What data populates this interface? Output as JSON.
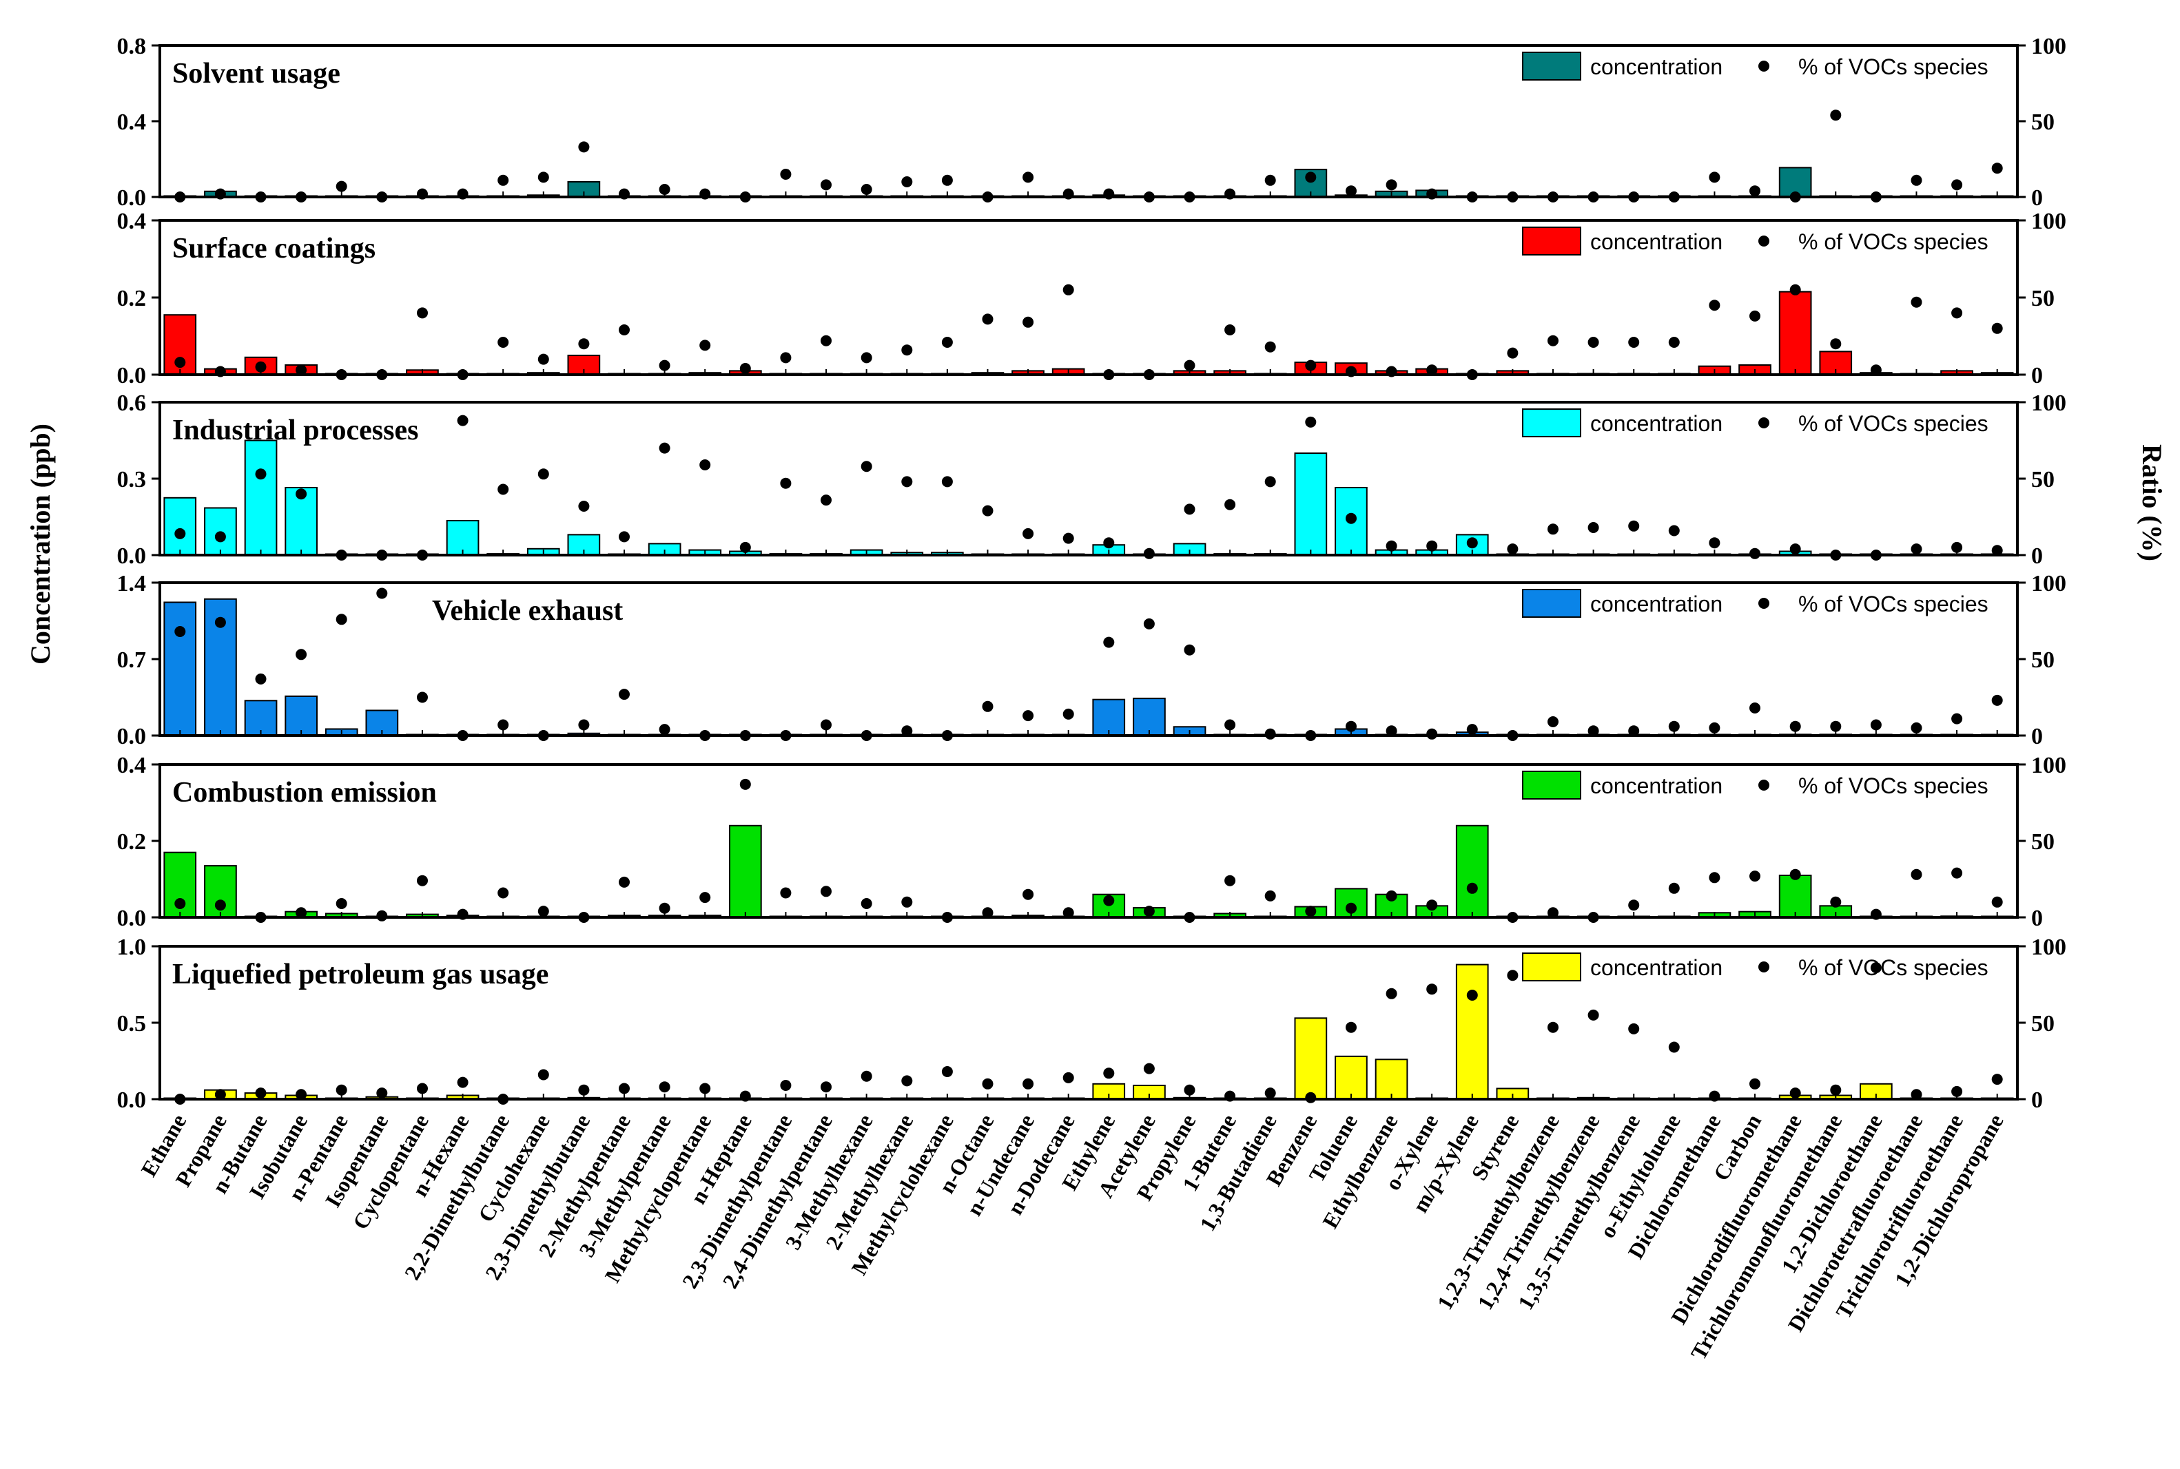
{
  "y_axis_title": "Concentration (ppb)",
  "y2_axis_title": "Ratio (%)",
  "legend": {
    "bar_label": "concentration",
    "dot_label": "% of VOCs species"
  },
  "categories": [
    "Ethane",
    "Propane",
    "n-Butane",
    "Isobutane",
    "n-Pentane",
    "Isopentane",
    "Cyclopentane",
    "n-Hexane",
    "2,2-Dimethylbutane",
    "Cyclohexane",
    "2,3-Dimethylbutane",
    "2-Methylpentane",
    "3-Methylpentane",
    "Methylcyclopentane",
    "n-Heptane",
    "2,3-Dimethylpentane",
    "2,4-Dimethylpentane",
    "3-Methylhexane",
    "2-Methylhexane",
    "Methylcyclohexane",
    "n-Octane",
    "n-Undecane",
    "n-Dodecane",
    "Ethylene",
    "Acetylene",
    "Propylene",
    "1-Butene",
    "1,3-Butadiene",
    "Benzene",
    "Toluene",
    "Ethylbenzene",
    "o-Xylene",
    "m/p-Xylene",
    "Styrene",
    "1,2,3-Trimethylbenzene",
    "1,2,4-Trimethylbenzene",
    "1,3,5-Trimethylbenzene",
    "o-Ethyltoluene",
    "Dichloromethane",
    "Carbon",
    "Dichlorodifluoromethane",
    "Trichloromonofluoromethane",
    "1,2-Dichloroethane",
    "Dichlorotetrafluoroethane",
    "Trichlorotrifluoroethane",
    "1,2-Dichloropropane"
  ],
  "chart_data": [
    {
      "type": "bar",
      "title": "Solvent usage",
      "color": "#007B7B",
      "ylim": [
        0,
        0.8
      ],
      "yticks": [
        "0.0",
        "0.4",
        "0.8"
      ],
      "y2lim": [
        0,
        100
      ],
      "y2ticks": [
        "0",
        "50",
        "100"
      ],
      "series": [
        {
          "name": "concentration",
          "axis": "left",
          "values": [
            0,
            0.03,
            0,
            0,
            0.005,
            0,
            0,
            0,
            0.005,
            0.01,
            0.08,
            0,
            0,
            0,
            0,
            0,
            0,
            0,
            0,
            0,
            0,
            0,
            0,
            0.01,
            0,
            0,
            0,
            0.005,
            0.145,
            0.01,
            0.03,
            0.035,
            0,
            0,
            0,
            0,
            0,
            0,
            0,
            0,
            0.155,
            0,
            0,
            0,
            0,
            0
          ]
        },
        {
          "name": "% of VOCs species",
          "axis": "right",
          "values": [
            0,
            2,
            0,
            0,
            7,
            0,
            2,
            2,
            11,
            13,
            33,
            2,
            5,
            2,
            0,
            15,
            8,
            5,
            10,
            11,
            0,
            13,
            2,
            2,
            0,
            0,
            2,
            11,
            13,
            4,
            8,
            2,
            0,
            0,
            0,
            0,
            0,
            0,
            13,
            4,
            0,
            54,
            0,
            11,
            8,
            19
          ]
        }
      ]
    },
    {
      "type": "bar",
      "title": "Surface coatings",
      "color": "#FF0000",
      "ylim": [
        0,
        0.4
      ],
      "yticks": [
        "0.0",
        "0.2",
        "0.4"
      ],
      "y2lim": [
        0,
        100
      ],
      "y2ticks": [
        "0",
        "50",
        "100"
      ],
      "series": [
        {
          "name": "concentration",
          "axis": "left",
          "values": [
            0.155,
            0.015,
            0.045,
            0.025,
            0,
            0,
            0.012,
            0,
            0,
            0.005,
            0.05,
            0.002,
            0,
            0.005,
            0.01,
            0,
            0,
            0,
            0.002,
            0.002,
            0.005,
            0.01,
            0.015,
            0,
            0,
            0.01,
            0.01,
            0,
            0.032,
            0.03,
            0.01,
            0.015,
            0.002,
            0.01,
            0,
            0.002,
            0,
            0,
            0.022,
            0.025,
            0.215,
            0.06,
            0.005,
            0,
            0.01,
            0.005
          ]
        },
        {
          "name": "% of VOCs species",
          "axis": "right",
          "values": [
            8,
            2,
            5,
            3,
            0,
            0,
            40,
            0,
            21,
            10,
            20,
            29,
            6,
            19,
            4,
            11,
            22,
            11,
            16,
            21,
            36,
            34,
            55,
            0,
            0,
            6,
            29,
            18,
            6,
            2,
            2,
            3,
            0,
            14,
            22,
            21,
            21,
            21,
            45,
            38,
            55,
            20,
            3,
            47,
            40,
            30
          ]
        }
      ]
    },
    {
      "type": "bar",
      "title": "Industrial processes",
      "color": "#00FFFF",
      "ylim": [
        0,
        0.6
      ],
      "yticks": [
        "0.0",
        "0.3",
        "0.6"
      ],
      "y2lim": [
        0,
        100
      ],
      "y2ticks": [
        "0",
        "50",
        "100"
      ],
      "series": [
        {
          "name": "concentration",
          "axis": "left",
          "values": [
            0.225,
            0.185,
            0.45,
            0.265,
            0,
            0,
            0,
            0.135,
            0.005,
            0.025,
            0.08,
            0,
            0.045,
            0.02,
            0.015,
            0.005,
            0.005,
            0.02,
            0.01,
            0.01,
            0,
            0,
            0,
            0.04,
            0,
            0.045,
            0.005,
            0.005,
            0.4,
            0.265,
            0.02,
            0.02,
            0.08,
            0,
            0,
            0,
            0,
            0,
            0,
            0,
            0.015,
            0,
            0,
            0,
            0,
            0
          ]
        },
        {
          "name": "% of VOCs species",
          "axis": "right",
          "values": [
            14,
            12,
            53,
            40,
            0,
            0,
            0,
            88,
            43,
            53,
            32,
            12,
            70,
            59,
            5,
            47,
            36,
            58,
            48,
            48,
            29,
            14,
            11,
            8,
            1,
            30,
            33,
            48,
            87,
            24,
            6,
            6,
            8,
            4,
            17,
            18,
            19,
            16,
            8,
            1,
            4,
            0,
            0,
            4,
            5,
            3
          ]
        }
      ]
    },
    {
      "type": "bar",
      "title": "Vehicle exhaust",
      "color": "#0A84E8",
      "ylim": [
        0,
        1.4
      ],
      "yticks": [
        "0.0",
        "0.7",
        "1.4"
      ],
      "y2lim": [
        0,
        100
      ],
      "y2ticks": [
        "0",
        "50",
        "100"
      ],
      "series": [
        {
          "name": "concentration",
          "axis": "left",
          "values": [
            1.22,
            1.25,
            0.32,
            0.36,
            0.06,
            0.23,
            0,
            0,
            0,
            0,
            0.02,
            0,
            0,
            0,
            0,
            0,
            0,
            0,
            0,
            0,
            0,
            0,
            0,
            0.33,
            0.34,
            0.08,
            0,
            0,
            0,
            0.06,
            0,
            0,
            0.03,
            0,
            0,
            0,
            0,
            0,
            0,
            0,
            0.01,
            0.01,
            0,
            0,
            0,
            0
          ]
        },
        {
          "name": "% of VOCs species",
          "axis": "right",
          "values": [
            68,
            74,
            37,
            53,
            76,
            93,
            25,
            0,
            7,
            0,
            7,
            27,
            4,
            0,
            0,
            0,
            7,
            0,
            3,
            0,
            19,
            13,
            14,
            61,
            73,
            56,
            7,
            1,
            0,
            6,
            3,
            1,
            4,
            0,
            9,
            3,
            3,
            6,
            5,
            18,
            6,
            6,
            7,
            5,
            11,
            23
          ]
        }
      ]
    },
    {
      "type": "bar",
      "title": "Combustion emission",
      "color": "#00E000",
      "ylim": [
        0,
        0.4
      ],
      "yticks": [
        "0.0",
        "0.2",
        "0.4"
      ],
      "y2lim": [
        0,
        100
      ],
      "y2ticks": [
        "0",
        "50",
        "100"
      ],
      "series": [
        {
          "name": "concentration",
          "axis": "left",
          "values": [
            0.17,
            0.135,
            0,
            0.015,
            0.01,
            0,
            0.008,
            0.005,
            0,
            0,
            0,
            0.005,
            0.005,
            0.005,
            0.24,
            0,
            0,
            0,
            0,
            0,
            0,
            0.005,
            0,
            0.06,
            0.025,
            0,
            0.01,
            0,
            0.028,
            0.075,
            0.06,
            0.03,
            0.24,
            0,
            0,
            0,
            0,
            0,
            0.012,
            0.015,
            0.11,
            0.03,
            0,
            0,
            0.003,
            0
          ]
        },
        {
          "name": "% of VOCs species",
          "axis": "right",
          "values": [
            9,
            8,
            0,
            3,
            9,
            1,
            24,
            2,
            16,
            4,
            0,
            23,
            6,
            13,
            87,
            16,
            17,
            9,
            10,
            0,
            3,
            15,
            3,
            11,
            4,
            0,
            24,
            14,
            4,
            6,
            14,
            8,
            19,
            0,
            3,
            0,
            8,
            19,
            26,
            27,
            28,
            10,
            2,
            28,
            29,
            10
          ]
        }
      ]
    },
    {
      "type": "bar",
      "title": "Liquefied petroleum gas usage",
      "color": "#FFFF00",
      "ylim": [
        0,
        1.0
      ],
      "yticks": [
        "0.0",
        "0.5",
        "1.0"
      ],
      "y2lim": [
        0,
        100
      ],
      "y2ticks": [
        "0",
        "50",
        "100"
      ],
      "series": [
        {
          "name": "concentration",
          "axis": "left",
          "values": [
            0,
            0.06,
            0.04,
            0.025,
            0,
            0.015,
            0,
            0.025,
            0,
            0,
            0.01,
            0,
            0,
            0,
            0.005,
            0,
            0,
            0,
            0,
            0,
            0,
            0,
            0,
            0.1,
            0.09,
            0.01,
            0,
            0,
            0.53,
            0.28,
            0.26,
            0,
            0.88,
            0.07,
            0,
            0.01,
            0,
            0,
            0,
            0,
            0.025,
            0.025,
            0.1,
            0,
            0,
            0
          ]
        },
        {
          "name": "% of VOCs species",
          "axis": "right",
          "values": [
            0,
            3,
            4,
            3,
            6,
            4,
            7,
            11,
            0,
            16,
            6,
            7,
            8,
            7,
            2,
            9,
            8,
            15,
            12,
            18,
            10,
            10,
            14,
            17,
            20,
            6,
            2,
            4,
            1,
            47,
            69,
            72,
            68,
            81,
            47,
            55,
            46,
            34,
            2,
            10,
            4,
            6,
            86,
            3,
            5,
            13
          ]
        }
      ]
    }
  ]
}
